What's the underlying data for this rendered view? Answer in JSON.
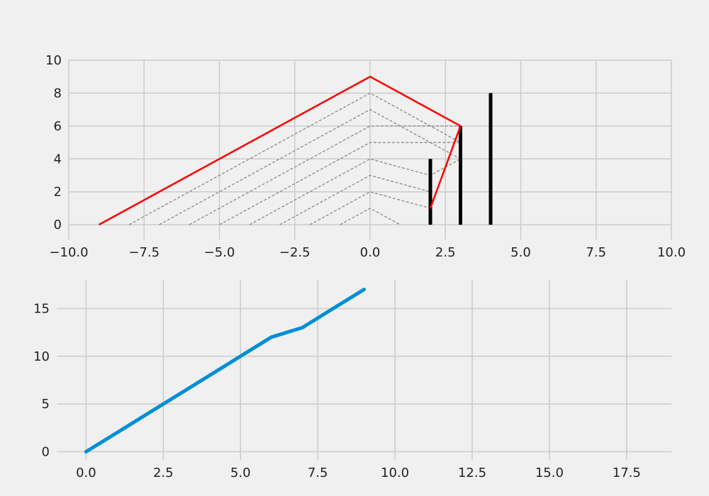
{
  "figure": {
    "background": "#f0f0f0",
    "grid_color": "#cbcbcb"
  },
  "chart_data": [
    {
      "type": "line",
      "title": "",
      "xlabel": "",
      "ylabel": "",
      "xlim": [
        -10,
        10
      ],
      "ylim": [
        -0.9,
        10
      ],
      "x_ticks": [
        -10,
        -7.5,
        -5,
        -2.5,
        0,
        2.5,
        5,
        7.5,
        10
      ],
      "x_tick_labels": [
        "−10.0",
        "−7.5",
        "−5.0",
        "−2.5",
        "0.0",
        "2.5",
        "5.0",
        "7.5",
        "10.0"
      ],
      "y_ticks": [
        0,
        2,
        4,
        6,
        8,
        10
      ],
      "y_tick_labels": [
        "0",
        "2",
        "4",
        "6",
        "8",
        "10"
      ],
      "grid": true,
      "dashed_lines": [
        {
          "points": [
            [
              -8,
              0
            ],
            [
              0,
              8
            ],
            [
              3,
              5
            ]
          ]
        },
        {
          "points": [
            [
              -7,
              0
            ],
            [
              0,
              7
            ],
            [
              3,
              4
            ]
          ]
        },
        {
          "points": [
            [
              -6,
              0
            ],
            [
              0,
              6
            ],
            [
              3,
              6
            ]
          ]
        },
        {
          "points": [
            [
              -5,
              0
            ],
            [
              0,
              5
            ],
            [
              3,
              5
            ]
          ]
        },
        {
          "points": [
            [
              -4,
              0
            ],
            [
              0,
              4
            ],
            [
              2,
              3
            ],
            [
              3,
              4
            ]
          ]
        },
        {
          "points": [
            [
              -3,
              0
            ],
            [
              0,
              3
            ],
            [
              2,
              2
            ]
          ]
        },
        {
          "points": [
            [
              -2,
              0
            ],
            [
              0,
              2
            ],
            [
              2,
              1
            ]
          ]
        },
        {
          "points": [
            [
              -1,
              0
            ],
            [
              0,
              1
            ],
            [
              1,
              0
            ]
          ]
        }
      ],
      "red_line": {
        "color": "#ff0000",
        "points": [
          [
            -9,
            0
          ],
          [
            0,
            9
          ],
          [
            3,
            6
          ],
          [
            2,
            1
          ]
        ]
      },
      "bars": [
        {
          "x": 2,
          "height": 4
        },
        {
          "x": 3,
          "height": 6
        },
        {
          "x": 4,
          "height": 8
        }
      ],
      "bar_color": "#000000",
      "dashed_color": "#808080"
    },
    {
      "type": "line",
      "title": "",
      "xlabel": "",
      "ylabel": "",
      "xlim": [
        -0.95,
        18.95
      ],
      "ylim": [
        -0.85,
        18
      ],
      "x_ticks": [
        0,
        2.5,
        5,
        7.5,
        10,
        12.5,
        15,
        17.5
      ],
      "x_tick_labels": [
        "0.0",
        "2.5",
        "5.0",
        "7.5",
        "10.0",
        "12.5",
        "15.0",
        "17.5"
      ],
      "y_ticks": [
        0,
        5,
        10,
        15
      ],
      "y_tick_labels": [
        "0",
        "5",
        "10",
        "15"
      ],
      "grid": true,
      "series": [
        {
          "color": "#008fd5",
          "x": [
            0,
            1,
            2,
            3,
            4,
            5,
            6,
            7,
            8,
            9
          ],
          "y": [
            0,
            2,
            4,
            6,
            8,
            10,
            12,
            13,
            15,
            17
          ]
        }
      ]
    }
  ]
}
